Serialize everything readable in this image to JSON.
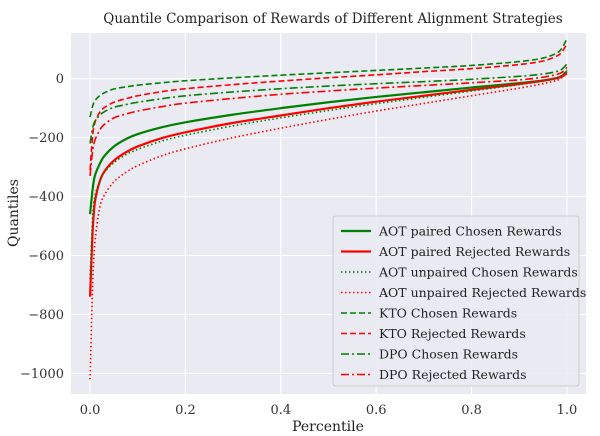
{
  "chart_data": {
    "type": "line",
    "title": "Quantile Comparison of Rewards of Different Alignment Strategies",
    "xlabel": "Percentile",
    "ylabel": "Quantiles",
    "xlim": [
      -0.04,
      1.04
    ],
    "ylim": [
      -1070,
      155
    ],
    "xticks": [
      0.0,
      0.2,
      0.4,
      0.6,
      0.8,
      1.0
    ],
    "xtick_labels": [
      "0.0",
      "0.2",
      "0.4",
      "0.6",
      "0.8",
      "1.0"
    ],
    "yticks": [
      0,
      -200,
      -400,
      -600,
      -800,
      -1000
    ],
    "ytick_labels": [
      "0",
      "−200",
      "−400",
      "−600",
      "−800",
      "−1000"
    ],
    "grid": true,
    "legend_position": "lower-right",
    "x": [
      0.0,
      0.005,
      0.01,
      0.02,
      0.03,
      0.05,
      0.075,
      0.1,
      0.15,
      0.2,
      0.3,
      0.4,
      0.5,
      0.6,
      0.7,
      0.8,
      0.9,
      0.95,
      0.98,
      0.99,
      1.0
    ],
    "series": [
      {
        "name": "AOT paired Chosen Rewards",
        "color": "#008000",
        "dash": "solid",
        "width": 2.2,
        "values": [
          -460,
          -380,
          -330,
          -290,
          -262,
          -230,
          -205,
          -188,
          -165,
          -148,
          -122,
          -100,
          -80,
          -62,
          -46,
          -30,
          -15,
          -6,
          3,
          10,
          25
        ]
      },
      {
        "name": "AOT paired Rejected Rewards",
        "color": "#ff0000",
        "dash": "solid",
        "width": 2.2,
        "values": [
          -740,
          -530,
          -420,
          -350,
          -315,
          -278,
          -250,
          -230,
          -202,
          -182,
          -150,
          -125,
          -100,
          -78,
          -58,
          -38,
          -18,
          -7,
          2,
          8,
          18
        ]
      },
      {
        "name": "AOT unpaired Chosen Rewards",
        "color": "#008000",
        "dash": "1.5,2.5",
        "width": 1.6,
        "values": [
          -680,
          -480,
          -400,
          -350,
          -318,
          -285,
          -258,
          -240,
          -212,
          -192,
          -160,
          -133,
          -108,
          -85,
          -63,
          -42,
          -20,
          -8,
          4,
          12,
          30
        ]
      },
      {
        "name": "AOT unpaired Rejected Rewards",
        "color": "#ff0000",
        "dash": "1.5,2.5",
        "width": 1.6,
        "values": [
          -1020,
          -720,
          -560,
          -440,
          -395,
          -350,
          -318,
          -295,
          -262,
          -238,
          -200,
          -168,
          -138,
          -110,
          -84,
          -58,
          -32,
          -17,
          -5,
          4,
          18
        ]
      },
      {
        "name": "KTO Chosen Rewards",
        "color": "#008000",
        "dash": "6,3",
        "width": 1.6,
        "values": [
          -130,
          -95,
          -75,
          -58,
          -48,
          -35,
          -28,
          -22,
          -14,
          -7,
          3,
          12,
          20,
          28,
          36,
          45,
          58,
          70,
          88,
          105,
          135
        ]
      },
      {
        "name": "KTO Rejected Rewards",
        "color": "#ff0000",
        "dash": "6,3",
        "width": 1.6,
        "values": [
          -310,
          -200,
          -150,
          -115,
          -98,
          -80,
          -68,
          -58,
          -44,
          -34,
          -20,
          -8,
          3,
          13,
          24,
          34,
          48,
          60,
          78,
          92,
          118
        ]
      },
      {
        "name": "DPO Chosen Rewards",
        "color": "#008000",
        "dash": "8,3,2,3",
        "width": 1.6,
        "values": [
          -220,
          -170,
          -145,
          -125,
          -112,
          -97,
          -88,
          -80,
          -68,
          -58,
          -45,
          -34,
          -25,
          -17,
          -10,
          -2,
          8,
          16,
          25,
          33,
          50
        ]
      },
      {
        "name": "DPO Rejected Rewards",
        "color": "#ff0000",
        "dash": "8,3,2,3",
        "width": 1.6,
        "values": [
          -330,
          -250,
          -210,
          -175,
          -155,
          -133,
          -120,
          -110,
          -95,
          -83,
          -67,
          -53,
          -42,
          -32,
          -23,
          -14,
          -4,
          5,
          15,
          22,
          38
        ]
      }
    ]
  }
}
